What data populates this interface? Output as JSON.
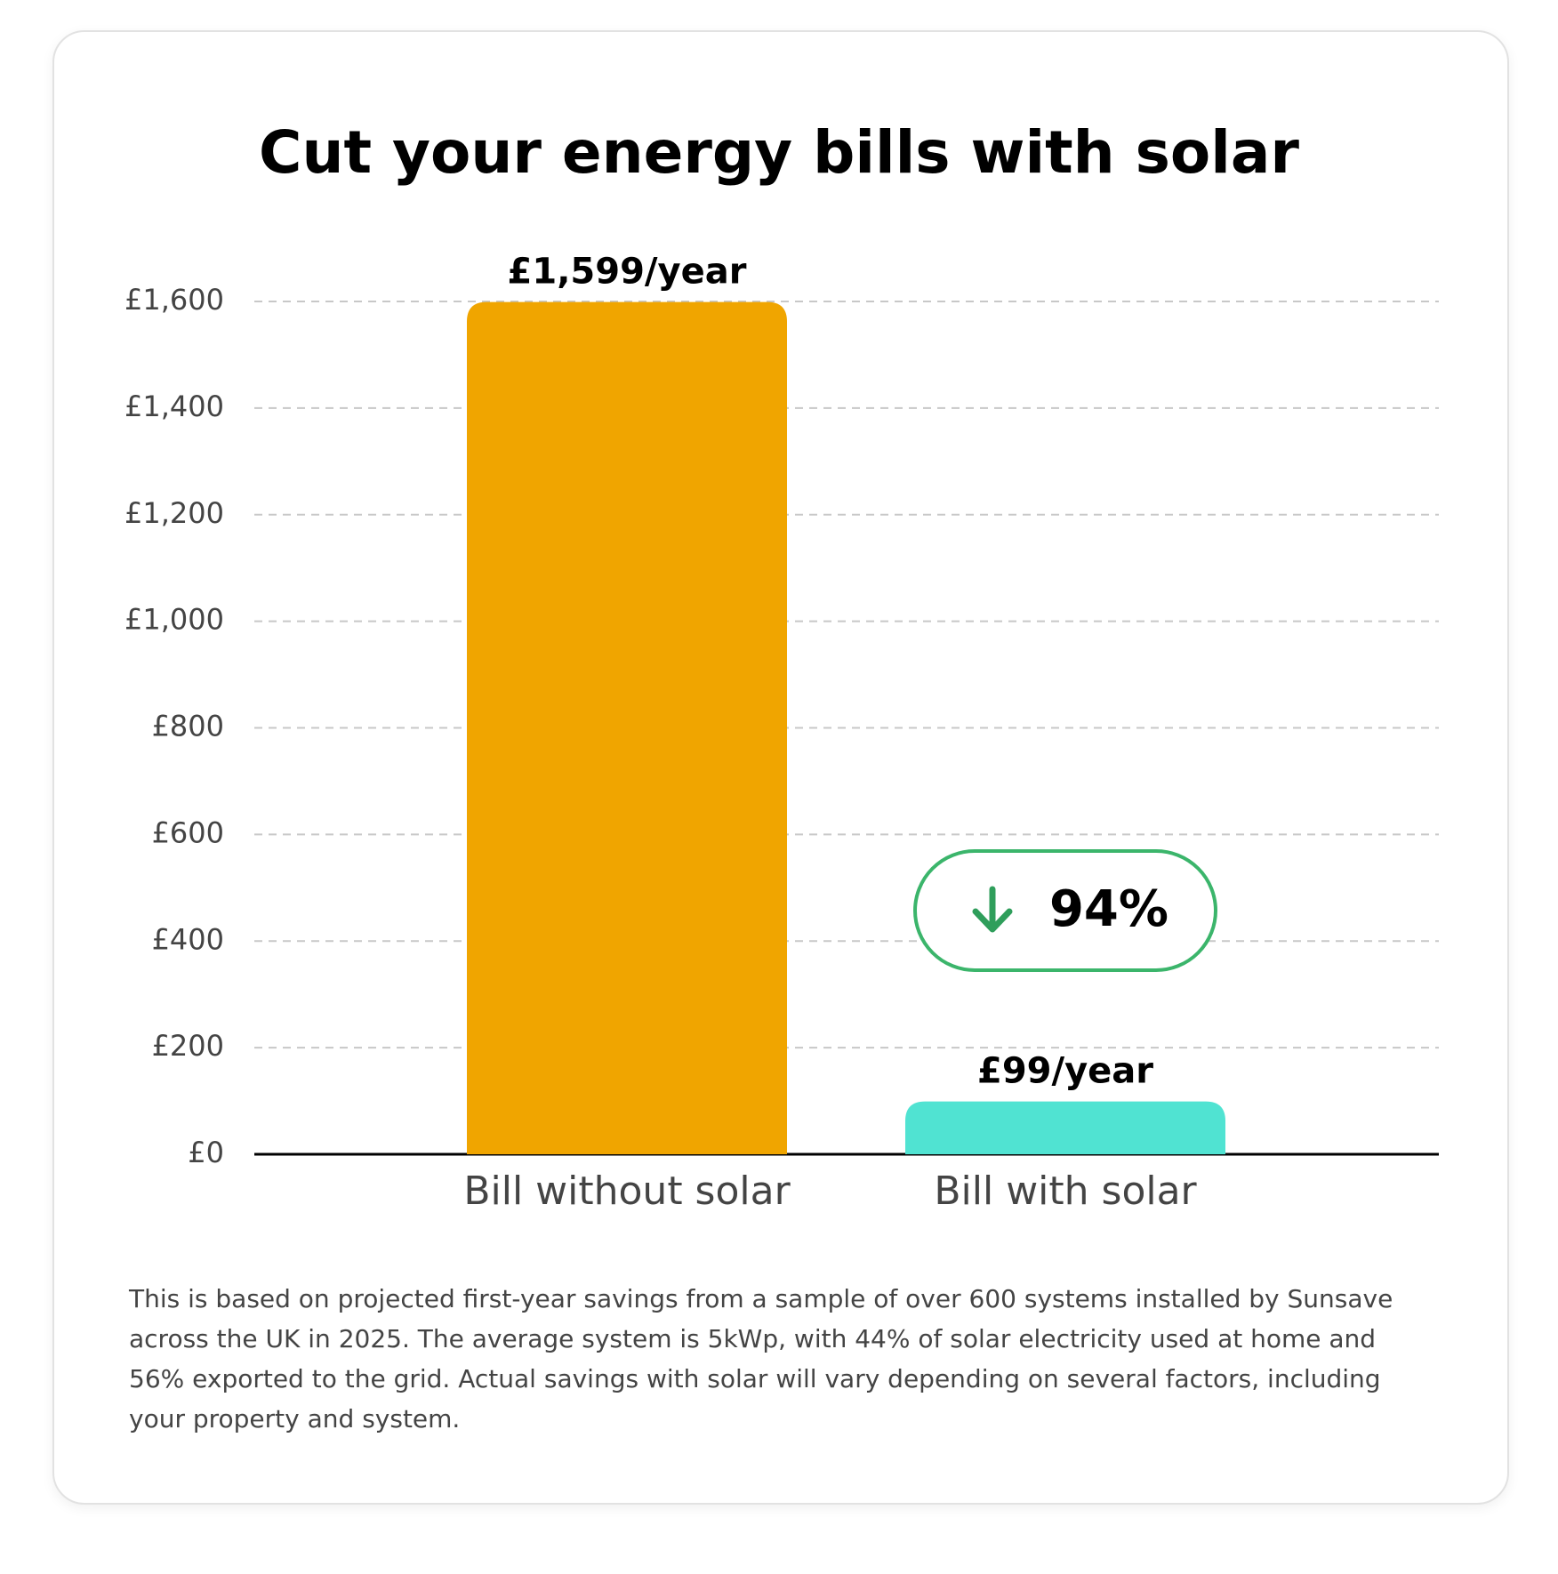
{
  "chart_data": {
    "type": "bar",
    "title": "Cut your energy bills with solar",
    "categories": [
      "Bill without solar",
      "Bill with solar"
    ],
    "values": [
      1599,
      99
    ],
    "value_labels": [
      "£1,599/year",
      "£99/year"
    ],
    "colors": [
      "#f0a500",
      "#50e3d2"
    ],
    "ylim": [
      0,
      1600
    ],
    "yticks": [
      {
        "value": 0,
        "label": "£0"
      },
      {
        "value": 200,
        "label": "£200"
      },
      {
        "value": 400,
        "label": "£400"
      },
      {
        "value": 600,
        "label": "£600"
      },
      {
        "value": 800,
        "label": "£800"
      },
      {
        "value": 1000,
        "label": "£1,000"
      },
      {
        "value": 1200,
        "label": "£1,200"
      },
      {
        "value": 1400,
        "label": "£1,400"
      },
      {
        "value": 1600,
        "label": "£1,600"
      }
    ],
    "grid": true,
    "annotation": "94%",
    "footnote": "This is based on projected first-year savings from a sample of over 600 systems installed by Sunsave across the UK in 2025. The average system is 5kWp, with 44% of solar electricity used at home and 56% exported to the grid. Actual savings with solar will vary depending on several factors, including your property and system."
  }
}
